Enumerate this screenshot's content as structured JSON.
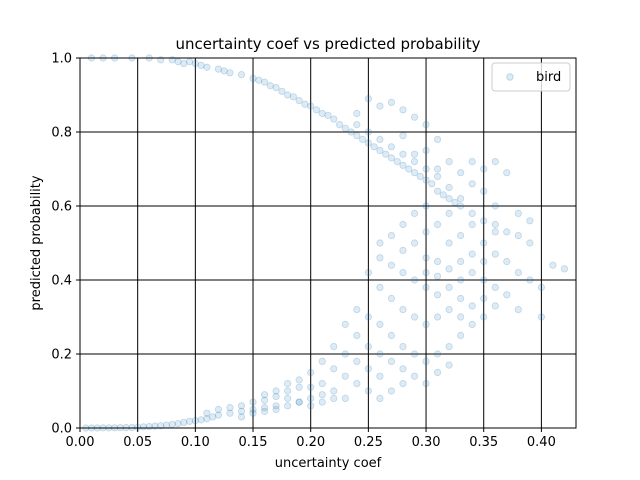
{
  "chart_data": {
    "type": "scatter",
    "title": "uncertainty coef vs predicted probability",
    "xlabel": "uncertainty coef",
    "ylabel": "predicted probability",
    "xlim": [
      0.0,
      0.43
    ],
    "ylim": [
      0.0,
      1.0
    ],
    "x_ticks": [
      "0.00",
      "0.05",
      "0.10",
      "0.15",
      "0.20",
      "0.25",
      "0.30",
      "0.35",
      "0.40"
    ],
    "y_ticks": [
      "0.0",
      "0.2",
      "0.4",
      "0.6",
      "0.8",
      "1.0"
    ],
    "grid": true,
    "legend_position": "top-right",
    "point_color": "#1f77b4",
    "point_opacity": 0.15,
    "series": [
      {
        "name": "bird",
        "points": [
          [
            0.01,
            1.0
          ],
          [
            0.02,
            1.0
          ],
          [
            0.03,
            1.0
          ],
          [
            0.045,
            1.0
          ],
          [
            0.06,
            1.0
          ],
          [
            0.07,
            0.995
          ],
          [
            0.08,
            0.995
          ],
          [
            0.085,
            0.99
          ],
          [
            0.09,
            0.985
          ],
          [
            0.095,
            0.99
          ],
          [
            0.1,
            0.985
          ],
          [
            0.105,
            0.98
          ],
          [
            0.11,
            0.975
          ],
          [
            0.12,
            0.97
          ],
          [
            0.125,
            0.965
          ],
          [
            0.13,
            0.96
          ],
          [
            0.14,
            0.955
          ],
          [
            0.15,
            0.945
          ],
          [
            0.155,
            0.94
          ],
          [
            0.16,
            0.935
          ],
          [
            0.165,
            0.925
          ],
          [
            0.17,
            0.92
          ],
          [
            0.175,
            0.91
          ],
          [
            0.18,
            0.9
          ],
          [
            0.185,
            0.895
          ],
          [
            0.19,
            0.885
          ],
          [
            0.195,
            0.875
          ],
          [
            0.2,
            0.87
          ],
          [
            0.205,
            0.86
          ],
          [
            0.21,
            0.85
          ],
          [
            0.215,
            0.845
          ],
          [
            0.22,
            0.835
          ],
          [
            0.225,
            0.82
          ],
          [
            0.23,
            0.81
          ],
          [
            0.235,
            0.8
          ],
          [
            0.24,
            0.79
          ],
          [
            0.245,
            0.78
          ],
          [
            0.25,
            0.77
          ],
          [
            0.255,
            0.76
          ],
          [
            0.26,
            0.75
          ],
          [
            0.265,
            0.74
          ],
          [
            0.27,
            0.73
          ],
          [
            0.275,
            0.72
          ],
          [
            0.28,
            0.71
          ],
          [
            0.285,
            0.7
          ],
          [
            0.29,
            0.69
          ],
          [
            0.295,
            0.68
          ],
          [
            0.3,
            0.67
          ],
          [
            0.305,
            0.66
          ],
          [
            0.31,
            0.64
          ],
          [
            0.315,
            0.63
          ],
          [
            0.32,
            0.62
          ],
          [
            0.325,
            0.61
          ],
          [
            0.33,
            0.6
          ],
          [
            0.34,
            0.58
          ],
          [
            0.35,
            0.56
          ],
          [
            0.36,
            0.55
          ],
          [
            0.37,
            0.53
          ],
          [
            0.38,
            0.52
          ],
          [
            0.39,
            0.5
          ],
          [
            0.27,
            0.88
          ],
          [
            0.28,
            0.86
          ],
          [
            0.29,
            0.84
          ],
          [
            0.3,
            0.82
          ],
          [
            0.31,
            0.78
          ],
          [
            0.25,
            0.89
          ],
          [
            0.26,
            0.87
          ],
          [
            0.24,
            0.85
          ],
          [
            0.3,
            0.75
          ],
          [
            0.32,
            0.72
          ],
          [
            0.31,
            0.7
          ],
          [
            0.29,
            0.74
          ],
          [
            0.28,
            0.79
          ],
          [
            0.33,
            0.69
          ],
          [
            0.34,
            0.66
          ],
          [
            0.35,
            0.64
          ],
          [
            0.36,
            0.6
          ],
          [
            0.32,
            0.58
          ],
          [
            0.31,
            0.55
          ],
          [
            0.3,
            0.53
          ],
          [
            0.29,
            0.5
          ],
          [
            0.28,
            0.48
          ],
          [
            0.3,
            0.46
          ],
          [
            0.31,
            0.45
          ],
          [
            0.32,
            0.5
          ],
          [
            0.33,
            0.52
          ],
          [
            0.34,
            0.55
          ],
          [
            0.35,
            0.5
          ],
          [
            0.36,
            0.47
          ],
          [
            0.37,
            0.45
          ],
          [
            0.38,
            0.42
          ],
          [
            0.39,
            0.4
          ],
          [
            0.4,
            0.38
          ],
          [
            0.41,
            0.44
          ],
          [
            0.42,
            0.43
          ],
          [
            0.4,
            0.3
          ],
          [
            0.38,
            0.32
          ],
          [
            0.37,
            0.36
          ],
          [
            0.36,
            0.38
          ],
          [
            0.35,
            0.4
          ],
          [
            0.34,
            0.42
          ],
          [
            0.33,
            0.4
          ],
          [
            0.32,
            0.38
          ],
          [
            0.31,
            0.36
          ],
          [
            0.3,
            0.38
          ],
          [
            0.29,
            0.4
          ],
          [
            0.28,
            0.42
          ],
          [
            0.27,
            0.44
          ],
          [
            0.26,
            0.46
          ],
          [
            0.25,
            0.42
          ],
          [
            0.26,
            0.38
          ],
          [
            0.27,
            0.35
          ],
          [
            0.28,
            0.32
          ],
          [
            0.29,
            0.3
          ],
          [
            0.3,
            0.28
          ],
          [
            0.31,
            0.3
          ],
          [
            0.32,
            0.32
          ],
          [
            0.33,
            0.3
          ],
          [
            0.34,
            0.28
          ],
          [
            0.35,
            0.3
          ],
          [
            0.36,
            0.33
          ],
          [
            0.33,
            0.25
          ],
          [
            0.32,
            0.22
          ],
          [
            0.31,
            0.2
          ],
          [
            0.3,
            0.18
          ],
          [
            0.29,
            0.2
          ],
          [
            0.28,
            0.22
          ],
          [
            0.27,
            0.25
          ],
          [
            0.26,
            0.28
          ],
          [
            0.25,
            0.3
          ],
          [
            0.24,
            0.32
          ],
          [
            0.23,
            0.28
          ],
          [
            0.24,
            0.25
          ],
          [
            0.25,
            0.22
          ],
          [
            0.26,
            0.2
          ],
          [
            0.27,
            0.18
          ],
          [
            0.28,
            0.16
          ],
          [
            0.29,
            0.14
          ],
          [
            0.3,
            0.12
          ],
          [
            0.31,
            0.15
          ],
          [
            0.32,
            0.17
          ],
          [
            0.26,
            0.14
          ],
          [
            0.25,
            0.16
          ],
          [
            0.24,
            0.18
          ],
          [
            0.23,
            0.2
          ],
          [
            0.22,
            0.22
          ],
          [
            0.21,
            0.18
          ],
          [
            0.22,
            0.16
          ],
          [
            0.23,
            0.14
          ],
          [
            0.24,
            0.12
          ],
          [
            0.25,
            0.1
          ],
          [
            0.26,
            0.08
          ],
          [
            0.27,
            0.1
          ],
          [
            0.28,
            0.12
          ],
          [
            0.2,
            0.15
          ],
          [
            0.19,
            0.13
          ],
          [
            0.18,
            0.12
          ],
          [
            0.17,
            0.1
          ],
          [
            0.16,
            0.09
          ],
          [
            0.2,
            0.11
          ],
          [
            0.21,
            0.12
          ],
          [
            0.22,
            0.1
          ],
          [
            0.23,
            0.08
          ],
          [
            0.21,
            0.09
          ],
          [
            0.2,
            0.08
          ],
          [
            0.19,
            0.07
          ],
          [
            0.18,
            0.08
          ],
          [
            0.17,
            0.06
          ],
          [
            0.16,
            0.055
          ],
          [
            0.15,
            0.05
          ],
          [
            0.14,
            0.045
          ],
          [
            0.13,
            0.04
          ],
          [
            0.12,
            0.035
          ],
          [
            0.115,
            0.03
          ],
          [
            0.11,
            0.025
          ],
          [
            0.105,
            0.022
          ],
          [
            0.1,
            0.02
          ],
          [
            0.095,
            0.018
          ],
          [
            0.09,
            0.015
          ],
          [
            0.085,
            0.012
          ],
          [
            0.08,
            0.01
          ],
          [
            0.075,
            0.008
          ],
          [
            0.07,
            0.006
          ],
          [
            0.065,
            0.005
          ],
          [
            0.06,
            0.004
          ],
          [
            0.055,
            0.003
          ],
          [
            0.05,
            0.002
          ],
          [
            0.045,
            0.0015
          ],
          [
            0.04,
            0.001
          ],
          [
            0.035,
            0.0008
          ],
          [
            0.03,
            0.0005
          ],
          [
            0.025,
            0.0004
          ],
          [
            0.02,
            0.0003
          ],
          [
            0.015,
            0.0002
          ],
          [
            0.01,
            0.0001
          ],
          [
            0.005,
            0.0
          ],
          [
            0.13,
            0.055
          ],
          [
            0.14,
            0.06
          ],
          [
            0.15,
            0.07
          ],
          [
            0.16,
            0.075
          ],
          [
            0.17,
            0.085
          ],
          [
            0.18,
            0.1
          ],
          [
            0.19,
            0.11
          ],
          [
            0.12,
            0.05
          ],
          [
            0.11,
            0.04
          ],
          [
            0.14,
            0.03
          ],
          [
            0.15,
            0.04
          ],
          [
            0.16,
            0.045
          ],
          [
            0.17,
            0.05
          ],
          [
            0.18,
            0.06
          ],
          [
            0.19,
            0.07
          ],
          [
            0.2,
            0.06
          ],
          [
            0.21,
            0.07
          ],
          [
            0.22,
            0.08
          ],
          [
            0.35,
            0.7
          ],
          [
            0.34,
            0.72
          ],
          [
            0.36,
            0.72
          ],
          [
            0.37,
            0.69
          ],
          [
            0.38,
            0.58
          ],
          [
            0.39,
            0.56
          ],
          [
            0.36,
            0.53
          ],
          [
            0.33,
            0.62
          ],
          [
            0.32,
            0.65
          ],
          [
            0.31,
            0.68
          ],
          [
            0.3,
            0.7
          ],
          [
            0.29,
            0.72
          ],
          [
            0.28,
            0.74
          ],
          [
            0.27,
            0.76
          ],
          [
            0.26,
            0.78
          ],
          [
            0.25,
            0.8
          ],
          [
            0.24,
            0.82
          ],
          [
            0.3,
            0.6
          ],
          [
            0.29,
            0.58
          ],
          [
            0.28,
            0.55
          ],
          [
            0.27,
            0.52
          ],
          [
            0.26,
            0.5
          ],
          [
            0.3,
            0.42
          ],
          [
            0.31,
            0.41
          ],
          [
            0.32,
            0.43
          ],
          [
            0.33,
            0.45
          ],
          [
            0.34,
            0.47
          ],
          [
            0.35,
            0.45
          ],
          [
            0.33,
            0.35
          ],
          [
            0.34,
            0.33
          ],
          [
            0.35,
            0.35
          ]
        ]
      }
    ]
  }
}
